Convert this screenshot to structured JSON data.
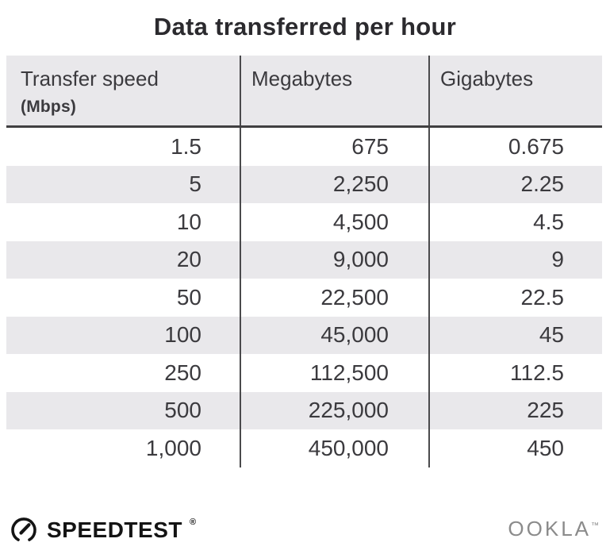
{
  "title": "Data transferred per hour",
  "table": {
    "headers": [
      {
        "label": "Transfer speed",
        "sub": "(Mbps)"
      },
      {
        "label": "Megabytes"
      },
      {
        "label": "Gigabytes"
      }
    ],
    "rows": [
      [
        "1.5",
        "675",
        "0.675"
      ],
      [
        "5",
        "2,250",
        "2.25"
      ],
      [
        "10",
        "4,500",
        "4.5"
      ],
      [
        "20",
        "9,000",
        "9"
      ],
      [
        "50",
        "22,500",
        "22.5"
      ],
      [
        "100",
        "45,000",
        "45"
      ],
      [
        "250",
        "112,500",
        "112.5"
      ],
      [
        "500",
        "225,000",
        "225"
      ],
      [
        "1,000",
        "450,000",
        "450"
      ]
    ]
  },
  "chart_data": {
    "type": "table",
    "title": "Data transferred per hour",
    "columns": [
      "Transfer speed (Mbps)",
      "Megabytes",
      "Gigabytes"
    ],
    "rows": [
      [
        1.5,
        675,
        0.675
      ],
      [
        5,
        2250,
        2.25
      ],
      [
        10,
        4500,
        4.5
      ],
      [
        20,
        9000,
        9
      ],
      [
        50,
        22500,
        22.5
      ],
      [
        100,
        45000,
        45
      ],
      [
        250,
        112500,
        112.5
      ],
      [
        500,
        225000,
        225
      ],
      [
        1000,
        450000,
        450
      ]
    ],
    "layout": {
      "striped_rows": true,
      "column_dividers": true,
      "header_band": true
    }
  },
  "footer": {
    "brand": "SPEEDTEST",
    "brand_mark": "®",
    "company": "OOKLA",
    "company_mark": "™"
  },
  "colors": {
    "header_bg": "#e9e8eb",
    "stripe_bg": "#e9e8eb",
    "text": "#3b3a3e",
    "title": "#2b2a2e",
    "header_rule": "#414042",
    "column_divider": "#4a4a4c",
    "ookla_gray": "#8b8b8b",
    "brand_black": "#141414"
  }
}
